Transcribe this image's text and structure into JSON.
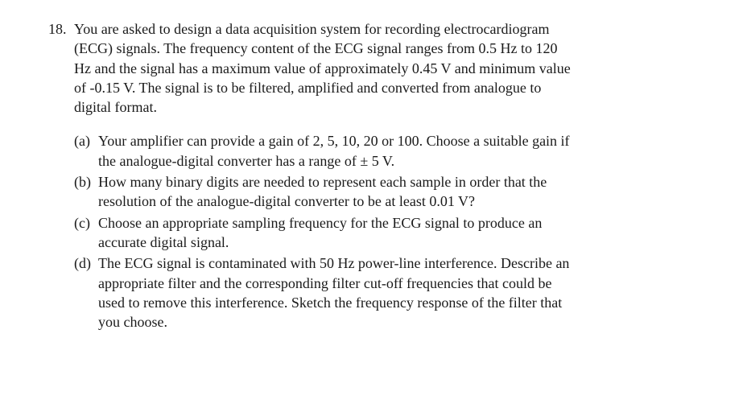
{
  "question": {
    "number": "18.",
    "stem_lines": [
      "You are asked to design a data acquisition system for recording electrocardiogram",
      "(ECG) signals.  The frequency content of the ECG signal ranges from 0.5 Hz to 120",
      "Hz and the signal has a maximum value of approximately 0.45 V and minimum value",
      "of  -0.15 V.   The signal is to be filtered, amplified and converted from analogue to",
      "digital format."
    ],
    "parts": [
      {
        "label": "(a)",
        "lines": [
          "Your amplifier can provide a gain of 2, 5, 10, 20 or 100. Choose a suitable gain if",
          "the analogue-digital converter has a range of ± 5 V."
        ]
      },
      {
        "label": "(b)",
        "lines": [
          "How many binary digits are needed to represent each sample in order that the",
          "resolution of the analogue-digital converter to be at least 0.01 V?"
        ]
      },
      {
        "label": "(c)",
        "lines": [
          "Choose an appropriate sampling frequency for the ECG signal to produce an",
          "accurate digital signal."
        ]
      },
      {
        "label": "(d)",
        "lines": [
          "The ECG signal is contaminated with 50 Hz power-line interference.  Describe an",
          "appropriate filter and the corresponding filter cut-off frequencies that could be",
          "used to remove this interference.  Sketch the frequency response of the filter that",
          "you choose."
        ]
      }
    ]
  }
}
